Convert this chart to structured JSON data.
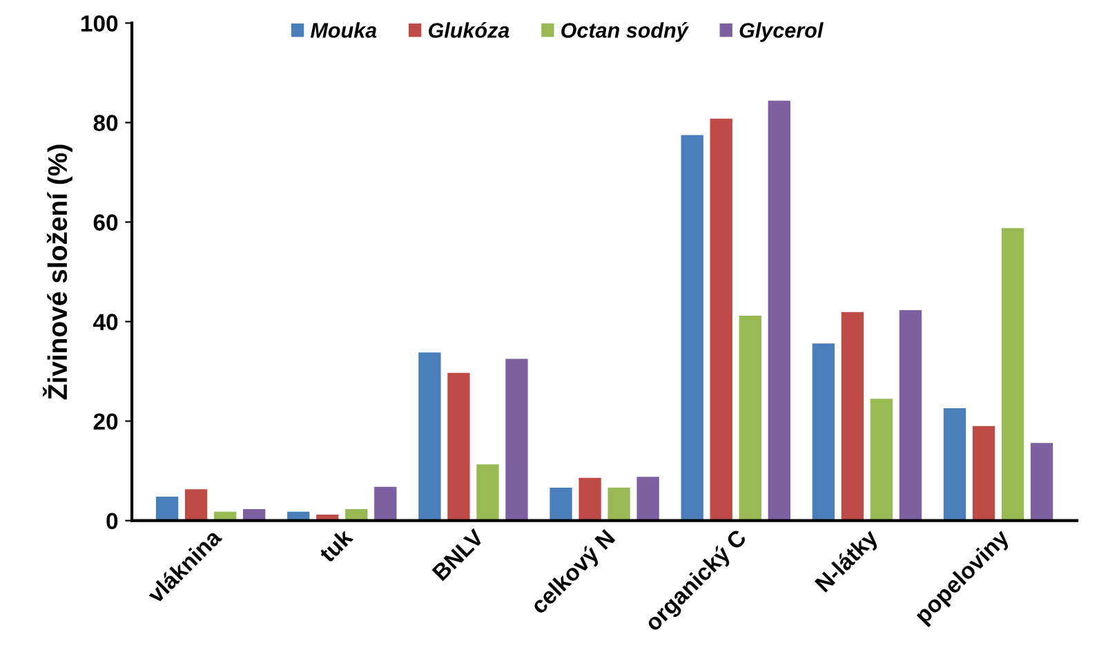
{
  "chart_data": {
    "type": "bar",
    "ylabel": "Živinové složení (%)",
    "categories": [
      "vláknina",
      "tuk",
      "BNLV",
      "celkový N",
      "organický C",
      "N-látky",
      "popeloviny"
    ],
    "series": [
      {
        "name": "Mouka",
        "color": "#4a7ebb",
        "values": [
          4.8,
          1.8,
          33.8,
          6.6,
          77.5,
          35.6,
          22.6
        ]
      },
      {
        "name": "Glukóza",
        "color": "#be4b48",
        "values": [
          6.3,
          1.2,
          29.7,
          8.6,
          80.8,
          41.9,
          19.0
        ]
      },
      {
        "name": "Octan sodný",
        "color": "#98b954",
        "values": [
          1.8,
          2.3,
          11.3,
          6.6,
          41.2,
          24.5,
          58.8
        ]
      },
      {
        "name": "Glycerol",
        "color": "#7d60a0",
        "values": [
          2.3,
          6.8,
          32.5,
          8.8,
          84.4,
          42.3,
          15.6
        ]
      }
    ],
    "ylim": [
      0,
      100
    ],
    "yticks": [
      0,
      20,
      40,
      60,
      80,
      100
    ],
    "grid": false,
    "legend": "top"
  }
}
